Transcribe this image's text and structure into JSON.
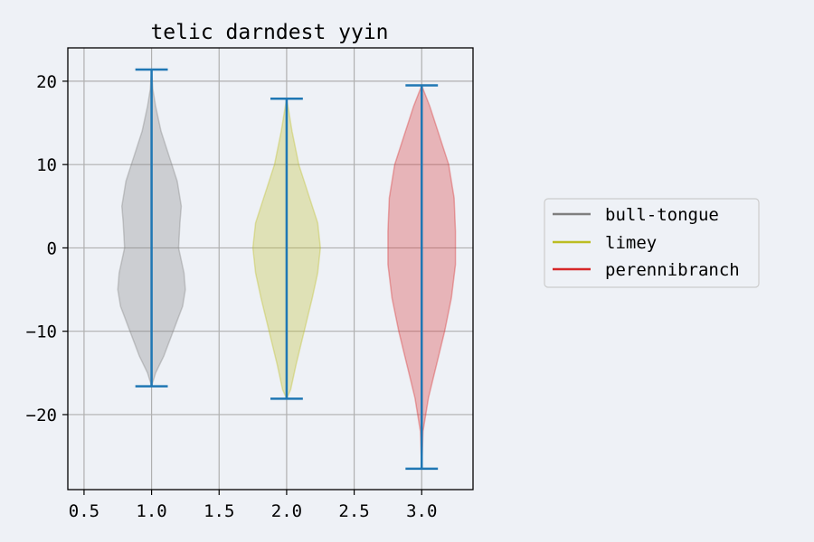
{
  "chart_data": {
    "type": "violin",
    "title": "telic darndest yyin",
    "xlabel": "",
    "ylabel": "",
    "xlim": [
      0.38,
      3.38
    ],
    "ylim": [
      -29,
      24
    ],
    "xticks": [
      0.5,
      1.0,
      1.5,
      2.0,
      2.5,
      3.0
    ],
    "xtick_labels": [
      "0.5",
      "1.0",
      "1.5",
      "2.0",
      "2.5",
      "3.0"
    ],
    "yticks": [
      -20,
      -10,
      0,
      10,
      20
    ],
    "ytick_labels": [
      "−20",
      "−10",
      "0",
      "10",
      "20"
    ],
    "grid": true,
    "legend_placement": "right",
    "series": [
      {
        "name": "bull-tongue",
        "x": 1.0,
        "min": -16.6,
        "max": 21.4,
        "color": "#7f7f7f",
        "profile": [
          [
            -16.6,
            0.0
          ],
          [
            -15,
            0.03
          ],
          [
            -13,
            0.09
          ],
          [
            -10,
            0.16
          ],
          [
            -7,
            0.23
          ],
          [
            -5,
            0.25
          ],
          [
            -3,
            0.24
          ],
          [
            0,
            0.2
          ],
          [
            3,
            0.21
          ],
          [
            5,
            0.22
          ],
          [
            8,
            0.19
          ],
          [
            11,
            0.13
          ],
          [
            14,
            0.07
          ],
          [
            17,
            0.03
          ],
          [
            19,
            0.01
          ],
          [
            21.4,
            0.0
          ]
        ]
      },
      {
        "name": "limey",
        "x": 2.0,
        "min": -18.1,
        "max": 17.9,
        "color": "#bcbd22",
        "profile": [
          [
            -18.1,
            0.0
          ],
          [
            -17,
            0.03
          ],
          [
            -14,
            0.07
          ],
          [
            -10,
            0.13
          ],
          [
            -6,
            0.19
          ],
          [
            -3,
            0.23
          ],
          [
            0,
            0.25
          ],
          [
            3,
            0.23
          ],
          [
            6,
            0.17
          ],
          [
            10,
            0.09
          ],
          [
            14,
            0.04
          ],
          [
            16,
            0.02
          ],
          [
            17.9,
            0.0
          ]
        ]
      },
      {
        "name": "perennibranch",
        "x": 3.0,
        "min": -26.5,
        "max": 19.5,
        "color": "#d62728",
        "profile": [
          [
            -26.5,
            0.0
          ],
          [
            -22,
            0.01
          ],
          [
            -18,
            0.05
          ],
          [
            -14,
            0.11
          ],
          [
            -10,
            0.17
          ],
          [
            -6,
            0.22
          ],
          [
            -2,
            0.25
          ],
          [
            2,
            0.25
          ],
          [
            6,
            0.24
          ],
          [
            10,
            0.2
          ],
          [
            14,
            0.12
          ],
          [
            17,
            0.06
          ],
          [
            19.5,
            0.0
          ]
        ]
      }
    ],
    "extrema_color": "#1f77b4"
  }
}
